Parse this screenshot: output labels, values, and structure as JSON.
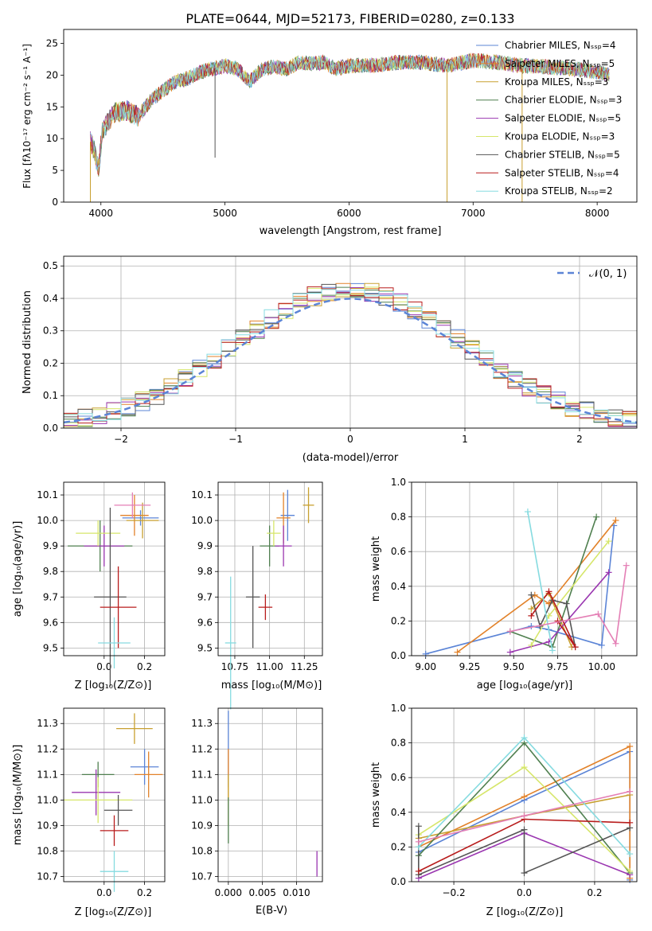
{
  "palette": [
    "#5b84d6",
    "#e2822a",
    "#c8a030",
    "#4f7f4f",
    "#9a36b0",
    "#d6e66a",
    "#555555",
    "#b81c1c",
    "#86dbe0"
  ],
  "chart_data": [
    {
      "id": "spectrum",
      "type": "line",
      "title": "PLATE=0644, MJD=52173, FIBERID=0280, z=0.133",
      "xlabel": "wavelength [Angstrom, rest frame]",
      "ylabel": "Flux [fλ10⁻¹⁷ erg cm⁻² s⁻¹ A⁻¹]",
      "xlim": [
        3700,
        8320
      ],
      "ylim": [
        0,
        27.2
      ],
      "xticks": [
        "4000",
        "5000",
        "6000",
        "7000",
        "8000"
      ],
      "yticks": [
        "0",
        "5",
        "10",
        "15",
        "20",
        "25"
      ],
      "legend": "top-right",
      "series": [
        {
          "name": "Chabrier MILES, Nₛₛₚ=4"
        },
        {
          "name": "Salpeter MILES, Nₛₛₚ=5"
        },
        {
          "name": "Kroupa MILES, Nₛₛₚ=3"
        },
        {
          "name": "Chabrier ELODIE, Nₛₛₚ=3"
        },
        {
          "name": "Salpeter ELODIE, Nₛₛₚ=5"
        },
        {
          "name": "Kroupa ELODIE, Nₛₛₚ=3"
        },
        {
          "name": "Chabrier STELIB, Nₛₛₚ=5"
        },
        {
          "name": "Salpeter STELIB, Nₛₛₚ=4"
        },
        {
          "name": "Kroupa STELIB, Nₛₛₚ=2"
        }
      ],
      "continuum": [
        [
          3915,
          9.5
        ],
        [
          3950,
          8
        ],
        [
          3980,
          5
        ],
        [
          4010,
          11
        ],
        [
          4100,
          14
        ],
        [
          4200,
          14.5
        ],
        [
          4300,
          13.5
        ],
        [
          4400,
          16
        ],
        [
          4500,
          17.5
        ],
        [
          4600,
          19
        ],
        [
          4700,
          19.5
        ],
        [
          4800,
          20.5
        ],
        [
          4900,
          21
        ],
        [
          5000,
          21.5
        ],
        [
          5100,
          21
        ],
        [
          5200,
          19
        ],
        [
          5300,
          21
        ],
        [
          5400,
          21.3
        ],
        [
          5500,
          21
        ],
        [
          5600,
          22
        ],
        [
          5700,
          21.8
        ],
        [
          5800,
          22
        ],
        [
          5900,
          21
        ],
        [
          6000,
          21.5
        ],
        [
          6200,
          21.5
        ],
        [
          6400,
          22
        ],
        [
          6600,
          22
        ],
        [
          6800,
          21.5
        ],
        [
          7000,
          22.3
        ],
        [
          7200,
          22
        ],
        [
          7400,
          21.5
        ],
        [
          7600,
          21.3
        ],
        [
          7800,
          21
        ],
        [
          8000,
          20.5
        ],
        [
          8100,
          20
        ]
      ],
      "spikes": [
        {
          "x": 3915,
          "y": 0
        },
        {
          "x": 4920,
          "y": 7
        },
        {
          "x": 6790,
          "y": 0
        },
        {
          "x": 7395,
          "y": 0
        }
      ]
    },
    {
      "id": "residuals",
      "type": "step",
      "xlabel": "(data-model)/error",
      "ylabel": "Normed distribution",
      "xlim": [
        -2.5,
        2.5
      ],
      "ylim": [
        0,
        0.53
      ],
      "xticks": [
        "−2",
        "−1",
        "0",
        "1",
        "2"
      ],
      "xtick_values": [
        -2,
        -1,
        0,
        1,
        2
      ],
      "yticks": [
        "0.0",
        "0.1",
        "0.2",
        "0.3",
        "0.4",
        "0.5"
      ],
      "legend": "top-right",
      "reference_label": "𝒩(0, 1)",
      "bin_width": 0.125
    },
    {
      "id": "age-vs-Z",
      "type": "scatter",
      "xlabel": "Z [log₁₀(Z/Z⊙)]",
      "ylabel": "age  [log₁₀(age/yr)]",
      "xlim": [
        -0.2,
        0.3
      ],
      "ylim": [
        9.47,
        10.15
      ],
      "xticks": [
        "0.0",
        "0.2"
      ],
      "xtick_values": [
        0,
        0.2
      ],
      "yticks": [
        "9.5",
        "9.6",
        "9.7",
        "9.8",
        "9.9",
        "10.0",
        "10.1"
      ],
      "ytick_values": [
        9.5,
        9.6,
        9.7,
        9.8,
        9.9,
        10.0,
        10.1
      ],
      "points": [
        {
          "x": 0.18,
          "y": 10.01,
          "xerr": 0.09,
          "yerr": 0.03
        },
        {
          "x": 0.15,
          "y": 10.02,
          "xerr": 0.07,
          "yerr": 0.08
        },
        {
          "x": 0.19,
          "y": 10.0,
          "xerr": 0.08,
          "yerr": 0.07
        },
        {
          "x": -0.02,
          "y": 9.9,
          "xerr": 0.16,
          "yerr": 0.1
        },
        {
          "x": 0.0,
          "y": 9.9,
          "xerr": 0.1,
          "yerr": 0.08
        },
        {
          "x": -0.03,
          "y": 9.95,
          "xerr": 0.11,
          "yerr": 0.05
        },
        {
          "x": 0.03,
          "y": 9.7,
          "xerr": 0.08,
          "yerr": 0.35
        },
        {
          "x": 0.07,
          "y": 9.66,
          "xerr": 0.09,
          "yerr": 0.16
        },
        {
          "x": 0.05,
          "y": 9.52,
          "xerr": 0.08,
          "yerr": 0.1
        },
        {
          "x": 0.14,
          "y": 10.06,
          "xerr": 0.09,
          "yerr": 0.05
        }
      ]
    },
    {
      "id": "age-vs-mass",
      "type": "scatter",
      "xlabel": "mass [log₁₀(M/M⊙)]",
      "ylabel": "",
      "xlim": [
        10.63,
        11.38
      ],
      "ylim": [
        9.47,
        10.15
      ],
      "xticks": [
        "10.75",
        "11.00",
        "11.25"
      ],
      "xtick_values": [
        10.75,
        11.0,
        11.25
      ],
      "yticks": [
        "9.5",
        "9.6",
        "9.7",
        "9.8",
        "9.9",
        "10.0",
        "10.1"
      ],
      "ytick_values": [
        9.5,
        9.6,
        9.7,
        9.8,
        9.9,
        10.0,
        10.1
      ],
      "points": [
        {
          "x": 11.13,
          "y": 10.02,
          "xerr": 0.05,
          "yerr": 0.1
        },
        {
          "x": 11.1,
          "y": 10.01,
          "xerr": 0.05,
          "yerr": 0.1
        },
        {
          "x": 11.28,
          "y": 10.06,
          "xerr": 0.04,
          "yerr": 0.07
        },
        {
          "x": 11.0,
          "y": 9.9,
          "xerr": 0.07,
          "yerr": 0.08
        },
        {
          "x": 11.1,
          "y": 9.9,
          "xerr": 0.06,
          "yerr": 0.08
        },
        {
          "x": 11.03,
          "y": 9.95,
          "xerr": 0.05,
          "yerr": 0.05
        },
        {
          "x": 10.88,
          "y": 9.7,
          "xerr": 0.05,
          "yerr": 0.2
        },
        {
          "x": 10.97,
          "y": 9.66,
          "xerr": 0.05,
          "yerr": 0.05
        },
        {
          "x": 10.72,
          "y": 9.52,
          "xerr": 0.04,
          "yerr": 0.26
        }
      ]
    },
    {
      "id": "mass-weight-vs-age",
      "type": "line",
      "xlabel": "age  [log₁₀(age/yr)]",
      "ylabel": "mass weight",
      "xlim": [
        8.92,
        10.2
      ],
      "ylim": [
        0,
        1
      ],
      "xticks": [
        "9.00",
        "9.25",
        "9.50",
        "9.75",
        "10.00"
      ],
      "xtick_values": [
        9.0,
        9.25,
        9.5,
        9.75,
        10.0
      ],
      "yticks": [
        "0.0",
        "0.2",
        "0.4",
        "0.6",
        "0.8",
        "1.0"
      ],
      "ytick_values": [
        0,
        0.2,
        0.4,
        0.6,
        0.8,
        1.0
      ],
      "series": [
        {
          "points": [
            [
              9.0,
              0.01
            ],
            [
              9.6,
              0.17
            ],
            [
              9.7,
              0.15
            ],
            [
              10.0,
              0.06
            ],
            [
              10.07,
              0.75
            ]
          ]
        },
        {
          "points": [
            [
              9.18,
              0.02
            ],
            [
              9.62,
              0.35
            ],
            [
              9.7,
              0.3
            ],
            [
              10.08,
              0.78
            ]
          ]
        },
        {
          "points": [
            [
              9.6,
              0.27
            ],
            [
              9.7,
              0.36
            ],
            [
              9.83,
              0.05
            ]
          ]
        },
        {
          "points": [
            [
              9.48,
              0.14
            ],
            [
              9.72,
              0.05
            ],
            [
              9.97,
              0.8
            ]
          ]
        },
        {
          "points": [
            [
              9.48,
              0.02
            ],
            [
              9.7,
              0.08
            ],
            [
              10.04,
              0.48
            ]
          ]
        },
        {
          "points": [
            [
              9.6,
              0.06
            ],
            [
              9.7,
              0.23
            ],
            [
              10.04,
              0.66
            ]
          ]
        },
        {
          "points": [
            [
              9.6,
              0.35
            ],
            [
              9.65,
              0.17
            ],
            [
              9.72,
              0.32
            ],
            [
              9.8,
              0.3
            ],
            [
              9.85,
              0.05
            ]
          ]
        },
        {
          "points": [
            [
              9.6,
              0.23
            ],
            [
              9.7,
              0.37
            ],
            [
              9.85,
              0.05
            ],
            [
              9.75,
              0.2
            ]
          ]
        },
        {
          "points": [
            [
              9.58,
              0.83
            ],
            [
              9.72,
              0.03
            ]
          ]
        },
        {
          "points": [
            [
              9.48,
              0.14
            ],
            [
              9.98,
              0.24
            ],
            [
              10.08,
              0.07
            ],
            [
              10.14,
              0.52
            ]
          ]
        }
      ]
    },
    {
      "id": "mass-vs-Z",
      "type": "scatter",
      "xlabel": "Z [log₁₀(Z/Z⊙)]",
      "ylabel": "mass [log₁₀(M/M⊙)]",
      "xlim": [
        -0.2,
        0.3
      ],
      "ylim": [
        10.68,
        11.36
      ],
      "xticks": [
        "0.0",
        "0.2"
      ],
      "xtick_values": [
        0,
        0.2
      ],
      "yticks": [
        "10.7",
        "10.8",
        "10.9",
        "11.0",
        "11.1",
        "11.2",
        "11.3"
      ],
      "ytick_values": [
        10.7,
        10.8,
        10.9,
        11.0,
        11.1,
        11.2,
        11.3
      ],
      "points": [
        {
          "x": 0.2,
          "y": 11.13,
          "xerr": 0.07,
          "yerr": 0.07
        },
        {
          "x": 0.22,
          "y": 11.1,
          "xerr": 0.07,
          "yerr": 0.09
        },
        {
          "x": 0.15,
          "y": 11.28,
          "xerr": 0.09,
          "yerr": 0.06
        },
        {
          "x": -0.03,
          "y": 11.1,
          "xerr": 0.08,
          "yerr": 0.05
        },
        {
          "x": -0.04,
          "y": 11.03,
          "xerr": 0.12,
          "yerr": 0.09
        },
        {
          "x": -0.03,
          "y": 11.0,
          "xerr": 0.17,
          "yerr": 0.09
        },
        {
          "x": 0.07,
          "y": 10.96,
          "xerr": 0.07,
          "yerr": 0.06
        },
        {
          "x": 0.05,
          "y": 10.88,
          "xerr": 0.07,
          "yerr": 0.06
        },
        {
          "x": 0.05,
          "y": 10.72,
          "xerr": 0.07,
          "yerr": 0.08
        }
      ]
    },
    {
      "id": "mass-vs-EBV",
      "type": "scatter",
      "xlabel": "E(B-V)",
      "ylabel": "",
      "xlim": [
        -0.0015,
        0.0138
      ],
      "ylim": [
        10.68,
        11.36
      ],
      "xticks": [
        "0.000",
        "0.005",
        "0.010"
      ],
      "xtick_values": [
        0,
        0.005,
        0.01
      ],
      "yticks": [
        "10.7",
        "10.8",
        "10.9",
        "11.0",
        "11.1",
        "11.2",
        "11.3"
      ],
      "ytick_values": [
        10.7,
        10.8,
        10.9,
        11.0,
        11.1,
        11.2,
        11.3
      ],
      "points": [
        {
          "x": 0.0,
          "y": 11.2,
          "xerr": 0,
          "yerr": 0.15
        },
        {
          "x": 0.0,
          "y": 11.1,
          "xerr": 0,
          "yerr": 0.1
        },
        {
          "x": 0.0,
          "y": 11.0,
          "xerr": 0,
          "yerr": 0.1
        },
        {
          "x": 0.0,
          "y": 10.92,
          "xerr": 0,
          "yerr": 0.09
        },
        {
          "x": 0.013,
          "y": 10.75,
          "xerr": 0,
          "yerr": 0.05
        }
      ]
    },
    {
      "id": "mass-weight-vs-Z",
      "type": "line",
      "xlabel": "Z [log₁₀(Z/Z⊙)]",
      "ylabel": "mass weight",
      "xlim": [
        -0.32,
        0.32
      ],
      "ylim": [
        0,
        1
      ],
      "xticks": [
        "−0.2",
        "0.0",
        "0.2"
      ],
      "xtick_values": [
        -0.2,
        0.0,
        0.2
      ],
      "yticks": [
        "0.0",
        "0.2",
        "0.4",
        "0.6",
        "0.8",
        "1.0"
      ],
      "ytick_values": [
        0,
        0.2,
        0.4,
        0.6,
        0.8,
        1.0
      ],
      "series": [
        {
          "points": [
            [
              -0.3,
              0.17
            ],
            [
              0.0,
              0.47
            ],
            [
              0.3,
              0.75
            ],
            [
              0.3,
              0.01
            ]
          ]
        },
        {
          "points": [
            [
              -0.3,
              0.2
            ],
            [
              0.0,
              0.49
            ],
            [
              0.3,
              0.78
            ],
            [
              0.3,
              0.02
            ]
          ]
        },
        {
          "points": [
            [
              -0.3,
              0.25
            ],
            [
              0.0,
              0.38
            ],
            [
              0.3,
              0.5
            ]
          ]
        },
        {
          "points": [
            [
              -0.3,
              0.15
            ],
            [
              0.0,
              0.8
            ],
            [
              0.3,
              0.05
            ]
          ]
        },
        {
          "points": [
            [
              -0.3,
              0.02
            ],
            [
              0.0,
              0.28
            ],
            [
              0.3,
              0.04
            ]
          ]
        },
        {
          "points": [
            [
              -0.3,
              0.27
            ],
            [
              0.0,
              0.66
            ],
            [
              0.3,
              0.06
            ]
          ]
        },
        {
          "points": [
            [
              -0.3,
              0.32
            ],
            [
              -0.3,
              0.04
            ],
            [
              0.0,
              0.3
            ],
            [
              0.0,
              0.05
            ],
            [
              0.3,
              0.31
            ]
          ]
        },
        {
          "points": [
            [
              -0.3,
              0.06
            ],
            [
              0.0,
              0.36
            ],
            [
              0.3,
              0.34
            ]
          ]
        },
        {
          "points": [
            [
              -0.3,
              0.2
            ],
            [
              0.0,
              0.83
            ],
            [
              0.3,
              0.16
            ]
          ]
        },
        {
          "points": [
            [
              -0.3,
              0.23
            ],
            [
              0.0,
              0.38
            ],
            [
              0.3,
              0.52
            ]
          ]
        }
      ]
    }
  ]
}
